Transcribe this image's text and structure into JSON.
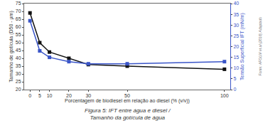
{
  "chart_data": {
    "type": "line",
    "xlabel": "Porcentagem de biodiesel em relação ao diesel (% (v/v))",
    "ylabel": "Tamanho de gotícula (D50 - µm)",
    "y2label": "Tensão Superficial IFT (mN/m)",
    "x": [
      0,
      5,
      10,
      20,
      30,
      50,
      100
    ],
    "series": [
      {
        "color": "#111111",
        "marker": "square",
        "line_style": "solid",
        "values": [
          69,
          50,
          44,
          40,
          36,
          35,
          33
        ]
      },
      {
        "color": "#3a55c8",
        "marker": "square",
        "line_style": "solid",
        "axis": "y2",
        "values": [
          32,
          18,
          15,
          13,
          12,
          12,
          13
        ]
      }
    ],
    "xlim": [
      -3,
      103
    ],
    "xticks": [
      0,
      5,
      10,
      20,
      30,
      50,
      100
    ],
    "ylim": [
      20,
      75
    ],
    "yticks": [
      20,
      25,
      30,
      35,
      40,
      45,
      50,
      55,
      60,
      65,
      70,
      75
    ],
    "y2lim": [
      0,
      40
    ],
    "y2ticks": [
      0,
      5,
      10,
      15,
      20,
      25,
      30,
      35,
      40
    ],
    "grid": false,
    "caption": [
      "Figura 5: IFT entre água e diesel /",
      "Tamanho da gotícula de água"
    ],
    "source": "Fonte: AFOLIV et al (2018) Adaptado"
  }
}
